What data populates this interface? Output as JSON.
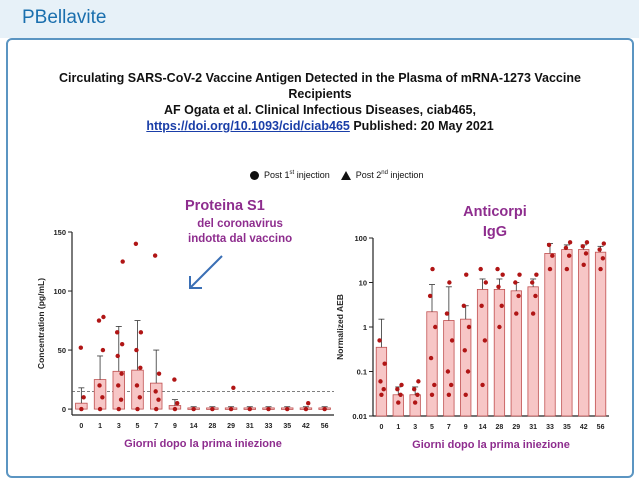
{
  "header": {
    "brand": "PBellavite"
  },
  "article": {
    "title_line1": "Circulating SARS-CoV-2 Vaccine Antigen Detected in the Plasma of mRNA-1273 Vaccine",
    "title_line2": "Recipients",
    "authors": "AF Ogata et al. Clinical Infectious Diseases, ciab465,",
    "doi_link": "https://doi.org/10.1093/cid/ciab465",
    "published": "Published: 20 May 2021"
  },
  "legend": {
    "first": "Post 1",
    "first_sup": "st",
    "first_suffix": " injection",
    "second": "Post 2",
    "second_sup": "nd",
    "second_suffix": " injection"
  },
  "annotations": {
    "left_main": "Proteina S1",
    "left_sub1": "del coronavirus",
    "left_sub2": "indotta dal vaccino",
    "right_main1": "Anticorpi",
    "right_main2": "IgG"
  },
  "colors": {
    "bar": "#f7c6c6",
    "bar_stroke": "#c05050",
    "point": "#b01515",
    "xlabel": "#8e2d8e",
    "accent": "#1a6fae"
  },
  "chart_data": [
    {
      "type": "bar",
      "ylabel": "Concentration (pg/mL)",
      "xlabel": "Giorni dopo la prima iniezione",
      "ylim": [
        -5,
        150
      ],
      "yticks": [
        0,
        50,
        100,
        150
      ],
      "categories": [
        "0",
        "1",
        "3",
        "5",
        "7",
        "9",
        "14",
        "28",
        "29",
        "31",
        "33",
        "35",
        "42",
        "56"
      ],
      "values": [
        5,
        25,
        32,
        33,
        22,
        3,
        1,
        1,
        1,
        1,
        1,
        1,
        1,
        1
      ],
      "error_upper": [
        18,
        45,
        70,
        75,
        50,
        8,
        2,
        2,
        2,
        2,
        2,
        2,
        2,
        2
      ],
      "threshold": 15,
      "points": {
        "0": [
          0,
          10,
          52
        ],
        "1": [
          0,
          10,
          20,
          50,
          75,
          78
        ],
        "3": [
          0,
          8,
          20,
          30,
          45,
          55,
          65,
          125
        ],
        "5": [
          0,
          10,
          20,
          35,
          50,
          65,
          140
        ],
        "7": [
          0,
          8,
          15,
          30,
          130
        ],
        "9": [
          0,
          5,
          25
        ],
        "14": [
          0
        ],
        "28": [
          0
        ],
        "29": [
          0,
          18
        ],
        "31": [
          0
        ],
        "33": [
          0
        ],
        "35": [
          0
        ],
        "42": [
          0,
          5
        ],
        "56": [
          0
        ]
      }
    },
    {
      "type": "bar",
      "ylabel": "Normalized AEB",
      "xlabel": "Giorni dopo la prima iniezione",
      "yscale": "log",
      "ylim": [
        0.01,
        100
      ],
      "yticks": [
        "0.01",
        "0.1",
        "1",
        "10",
        "100"
      ],
      "categories": [
        "0",
        "1",
        "3",
        "5",
        "7",
        "9",
        "14",
        "28",
        "29",
        "31",
        "33",
        "35",
        "42",
        "56"
      ],
      "values": [
        0.35,
        0.03,
        0.03,
        2.2,
        1.4,
        1.5,
        7,
        7,
        6.5,
        8,
        45,
        55,
        55,
        48
      ],
      "error_upper": [
        1.5,
        0.045,
        0.045,
        9,
        8,
        3,
        12,
        12,
        10,
        12,
        75,
        70,
        70,
        65
      ],
      "points": {
        "0": [
          0.03,
          0.04,
          0.06,
          0.15,
          0.5
        ],
        "1": [
          0.02,
          0.03,
          0.04,
          0.05
        ],
        "3": [
          0.02,
          0.03,
          0.04,
          0.06
        ],
        "5": [
          0.03,
          0.05,
          0.2,
          1,
          5,
          20
        ],
        "7": [
          0.03,
          0.05,
          0.1,
          0.5,
          2,
          10
        ],
        "9": [
          0.03,
          0.1,
          0.3,
          1,
          3,
          15
        ],
        "14": [
          0.05,
          0.5,
          3,
          10,
          20
        ],
        "28": [
          1,
          3,
          8,
          15,
          20
        ],
        "29": [
          2,
          5,
          10,
          15
        ],
        "31": [
          2,
          5,
          10,
          15
        ],
        "33": [
          20,
          40,
          70
        ],
        "35": [
          20,
          40,
          60,
          80
        ],
        "42": [
          25,
          45,
          65,
          80
        ],
        "56": [
          20,
          35,
          55,
          75
        ]
      }
    }
  ]
}
